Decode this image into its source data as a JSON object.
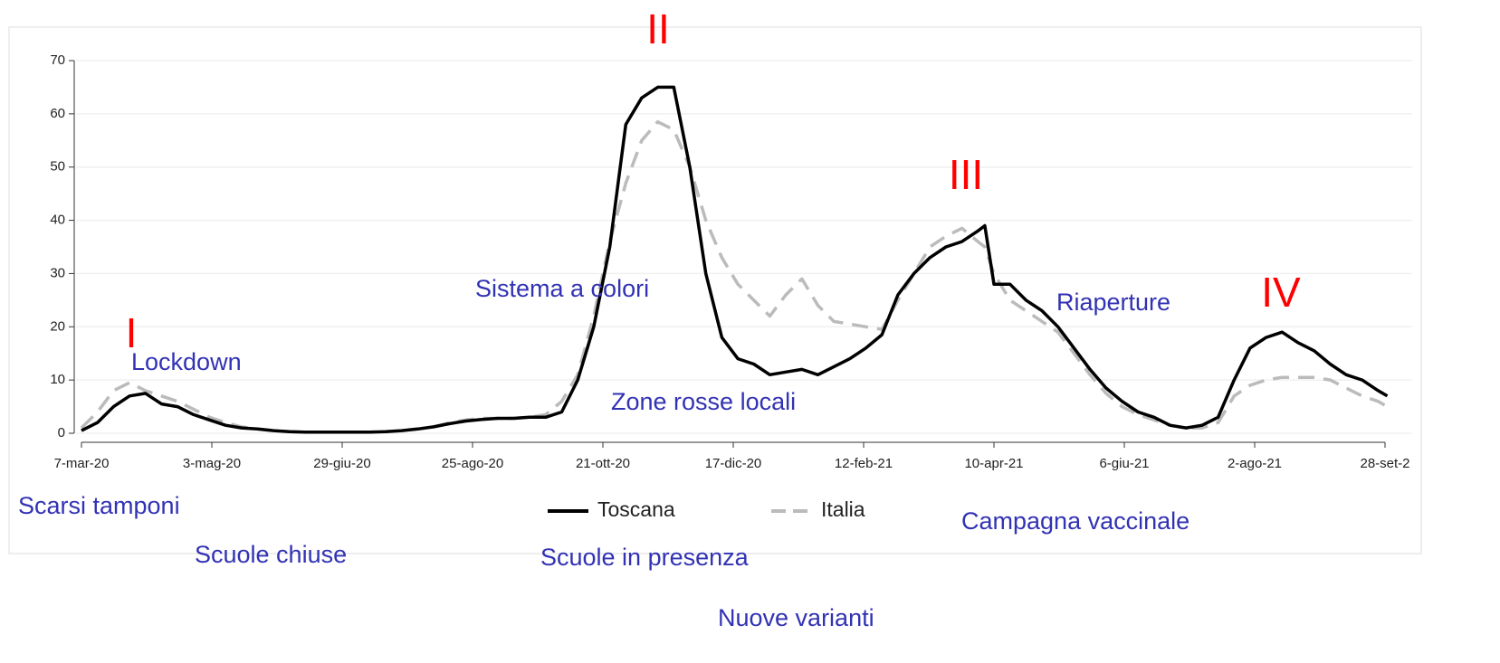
{
  "chart_data": {
    "type": "line",
    "x": [
      "2020-03-07",
      "2020-03-14",
      "2020-03-21",
      "2020-03-28",
      "2020-04-04",
      "2020-04-11",
      "2020-04-18",
      "2020-04-25",
      "2020-05-02",
      "2020-05-09",
      "2020-05-16",
      "2020-05-23",
      "2020-05-30",
      "2020-06-06",
      "2020-06-13",
      "2020-06-20",
      "2020-06-27",
      "2020-07-04",
      "2020-07-11",
      "2020-07-18",
      "2020-07-25",
      "2020-08-01",
      "2020-08-08",
      "2020-08-15",
      "2020-08-22",
      "2020-08-29",
      "2020-09-05",
      "2020-09-12",
      "2020-09-19",
      "2020-09-26",
      "2020-10-03",
      "2020-10-10",
      "2020-10-17",
      "2020-10-24",
      "2020-10-31",
      "2020-11-07",
      "2020-11-14",
      "2020-11-21",
      "2020-11-28",
      "2020-12-05",
      "2020-12-12",
      "2020-12-19",
      "2020-12-26",
      "2021-01-02",
      "2021-01-09",
      "2021-01-16",
      "2021-01-23",
      "2021-01-30",
      "2021-02-06",
      "2021-02-13",
      "2021-02-20",
      "2021-02-27",
      "2021-03-06",
      "2021-03-13",
      "2021-03-20",
      "2021-03-27",
      "2021-04-03",
      "2021-04-06",
      "2021-04-10",
      "2021-04-17",
      "2021-04-24",
      "2021-05-01",
      "2021-05-08",
      "2021-05-15",
      "2021-05-22",
      "2021-05-29",
      "2021-06-05",
      "2021-06-12",
      "2021-06-19",
      "2021-06-26",
      "2021-07-03",
      "2021-07-10",
      "2021-07-17",
      "2021-07-24",
      "2021-07-31",
      "2021-08-07",
      "2021-08-14",
      "2021-08-21",
      "2021-08-28",
      "2021-09-04",
      "2021-09-11",
      "2021-09-18",
      "2021-09-25",
      "2021-09-29"
    ],
    "series": [
      {
        "name": "Toscana",
        "color": "#000000",
        "dashed": false,
        "values": [
          0.5,
          2,
          5,
          7,
          7.5,
          5.5,
          5,
          3.5,
          2.5,
          1.5,
          1,
          0.8,
          0.5,
          0.3,
          0.2,
          0.2,
          0.2,
          0.2,
          0.2,
          0.3,
          0.5,
          0.8,
          1.2,
          1.8,
          2.3,
          2.6,
          2.8,
          2.8,
          3,
          3,
          4,
          10,
          20,
          35,
          58,
          63,
          65,
          65,
          50,
          30,
          18,
          14,
          13,
          11,
          11.5,
          12,
          11,
          12.5,
          14,
          16,
          18.5,
          26,
          30,
          33,
          35,
          36,
          38,
          39,
          28,
          28,
          25,
          23,
          20,
          16,
          12,
          8.5,
          6,
          4,
          3,
          1.5,
          1,
          1.5,
          3,
          10,
          16,
          18,
          19,
          17,
          15.5,
          13,
          11,
          10,
          8,
          7
        ]
      },
      {
        "name": "Italia",
        "color": "#bbbbbb",
        "dashed": true,
        "values": [
          1,
          4,
          8,
          9.5,
          8,
          7,
          6,
          4.5,
          3,
          2,
          1.2,
          0.8,
          0.5,
          0.3,
          0.2,
          0.2,
          0.2,
          0.2,
          0.2,
          0.3,
          0.5,
          0.8,
          1.2,
          2,
          2.5,
          2.8,
          2.8,
          2.8,
          3,
          3.5,
          6,
          11,
          22,
          36,
          47,
          55,
          58.5,
          57,
          50,
          40,
          33,
          28,
          25,
          22,
          26,
          29,
          24,
          21,
          20.5,
          20,
          19.5,
          25,
          30,
          35,
          37,
          38.5,
          36,
          35,
          30,
          25,
          23,
          21,
          19,
          15,
          11,
          7.5,
          5,
          3.5,
          2.5,
          1.5,
          1,
          1,
          2,
          7,
          9,
          10,
          10.5,
          10.5,
          10.5,
          10,
          8.5,
          7,
          6,
          5
        ]
      }
    ],
    "xlim": [
      "2020-03-07",
      "2021-09-28"
    ],
    "xticks": [
      {
        "value": "2020-03-07",
        "label": "7-mar-20"
      },
      {
        "value": "2020-05-03",
        "label": "3-mag-20"
      },
      {
        "value": "2020-06-29",
        "label": "29-giu-20"
      },
      {
        "value": "2020-08-25",
        "label": "25-ago-20"
      },
      {
        "value": "2020-10-21",
        "label": "21-ott-20"
      },
      {
        "value": "2020-12-17",
        "label": "17-dic-20"
      },
      {
        "value": "2021-02-12",
        "label": "12-feb-21"
      },
      {
        "value": "2021-04-10",
        "label": "10-apr-21"
      },
      {
        "value": "2021-06-06",
        "label": "6-giu-21"
      },
      {
        "value": "2021-08-02",
        "label": "2-ago-21"
      },
      {
        "value": "2021-09-28",
        "label": "28-set-2"
      }
    ],
    "ylim": [
      0,
      70
    ],
    "yticks": [
      0,
      10,
      20,
      30,
      40,
      50,
      60,
      70
    ],
    "grid": true,
    "peaks": [
      "I",
      "II",
      "III",
      "IV"
    ],
    "peak_color": "#ff0000",
    "notes": [
      "Lockdown",
      "Sistema a colori",
      "Zone rosse locali",
      "Riaperture",
      "Scarsi tamponi",
      "Scuole chiuse",
      "Scuole in presenza",
      "Campagna vaccinale",
      "Nuove varianti"
    ],
    "note_color": "#3232b4"
  }
}
